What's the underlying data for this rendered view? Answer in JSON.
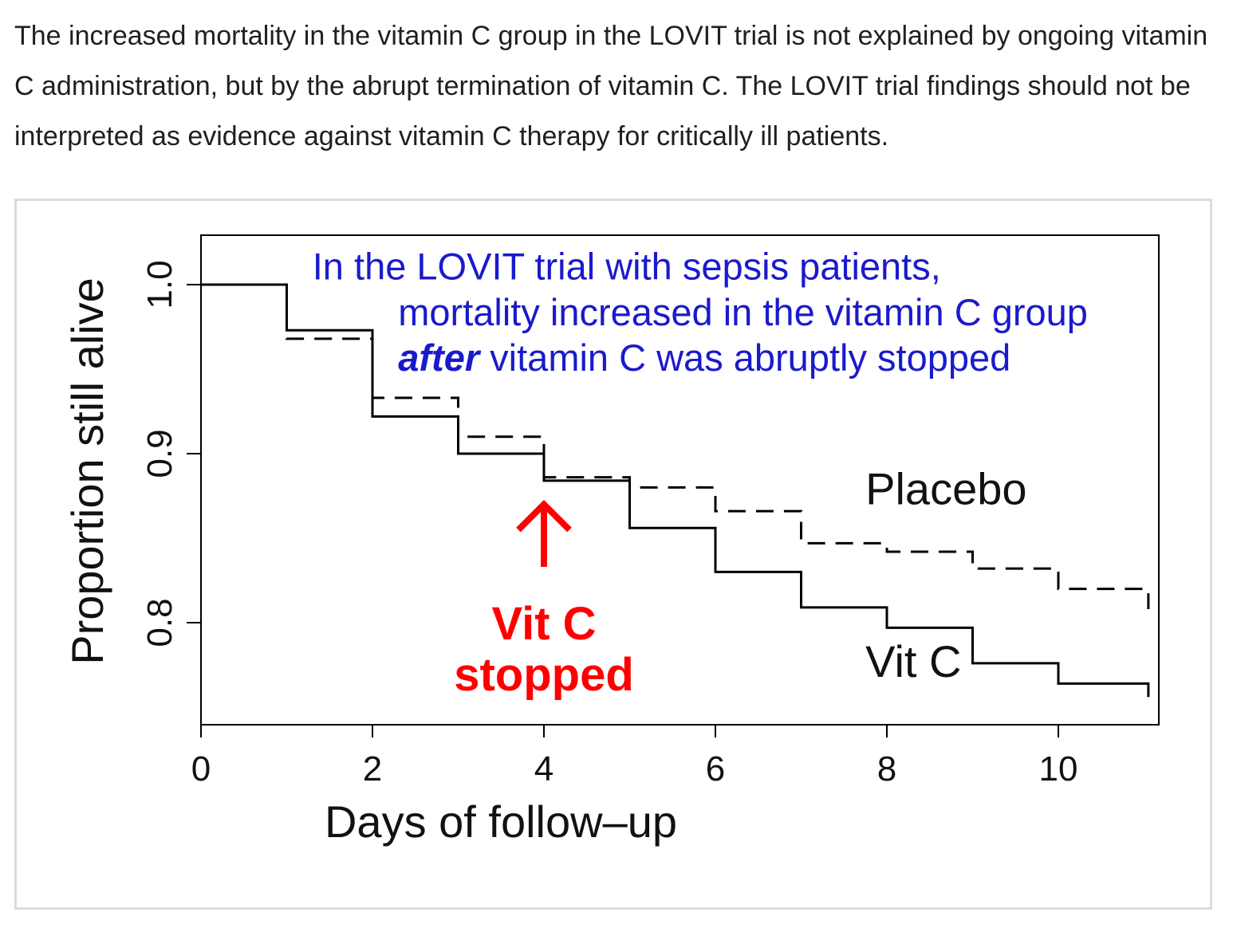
{
  "article": {
    "paragraph": "The increased mortality in the vitamin C group in the LOVIT trial is not explained by ongoing vitamin C administration, but by the abrupt termination of vitamin C. The LOVIT trial findings should not be interpreted as evidence against vitamin C therapy for critically ill patients."
  },
  "chart_data": {
    "type": "line",
    "step": true,
    "title": "",
    "xlabel": "Days of follow–up",
    "ylabel": "Proportion still alive",
    "xlim": [
      0,
      11.2
    ],
    "ylim": [
      0.74,
      1.03
    ],
    "x_ticks": [
      0,
      2,
      4,
      6,
      8,
      10
    ],
    "x_tick_labels": [
      "0",
      "2",
      "4",
      "6",
      "8",
      "10"
    ],
    "y_ticks": [
      0.8,
      0.9,
      1.0
    ],
    "y_tick_labels": [
      "0.8",
      "0.9",
      "1.0"
    ],
    "grid": false,
    "series": [
      {
        "name": "Vit C",
        "style": "solid",
        "color": "#000000",
        "steps": [
          {
            "x": 0,
            "y": 1.0
          },
          {
            "x": 1,
            "y": 0.973
          },
          {
            "x": 2,
            "y": 0.922
          },
          {
            "x": 3,
            "y": 0.9
          },
          {
            "x": 4,
            "y": 0.884
          },
          {
            "x": 5,
            "y": 0.856
          },
          {
            "x": 6,
            "y": 0.83
          },
          {
            "x": 7,
            "y": 0.809
          },
          {
            "x": 8,
            "y": 0.797
          },
          {
            "x": 9,
            "y": 0.776
          },
          {
            "x": 10,
            "y": 0.764
          }
        ],
        "end": {
          "x": 11.05,
          "y": 0.756
        }
      },
      {
        "name": "Placebo",
        "style": "dashed",
        "color": "#000000",
        "steps": [
          {
            "x": 0,
            "y": 1.0
          },
          {
            "x": 1,
            "y": 0.968
          },
          {
            "x": 2,
            "y": 0.933
          },
          {
            "x": 3,
            "y": 0.91
          },
          {
            "x": 4,
            "y": 0.886
          },
          {
            "x": 5,
            "y": 0.88
          },
          {
            "x": 6,
            "y": 0.866
          },
          {
            "x": 7,
            "y": 0.847
          },
          {
            "x": 8,
            "y": 0.842
          },
          {
            "x": 9,
            "y": 0.832
          },
          {
            "x": 10,
            "y": 0.82
          }
        ],
        "end": {
          "x": 11.05,
          "y": 0.808
        }
      }
    ],
    "series_labels": [
      {
        "text": "Placebo",
        "x": 7.75,
        "y": 0.87
      },
      {
        "text": "Vit C",
        "x": 7.75,
        "y": 0.768
      }
    ],
    "annotations": {
      "note": {
        "line1": "In the LOVIT trial with sepsis patients,",
        "line2": "mortality increased in the vitamin C group",
        "emphasis": "after",
        "line3_rest": " vitamin C was abruptly stopped",
        "color": "#1a1acc",
        "x1": 1.3,
        "x2": 2.3,
        "y1": 1.003,
        "y2": 0.976,
        "y3": 0.949
      },
      "marker": {
        "line1": "Vit C",
        "line2": "stopped",
        "color": "#ff0000",
        "x": 4,
        "arrow_from": 0.833,
        "arrow_to": 0.87,
        "y1": 0.79,
        "y2": 0.76
      }
    }
  }
}
